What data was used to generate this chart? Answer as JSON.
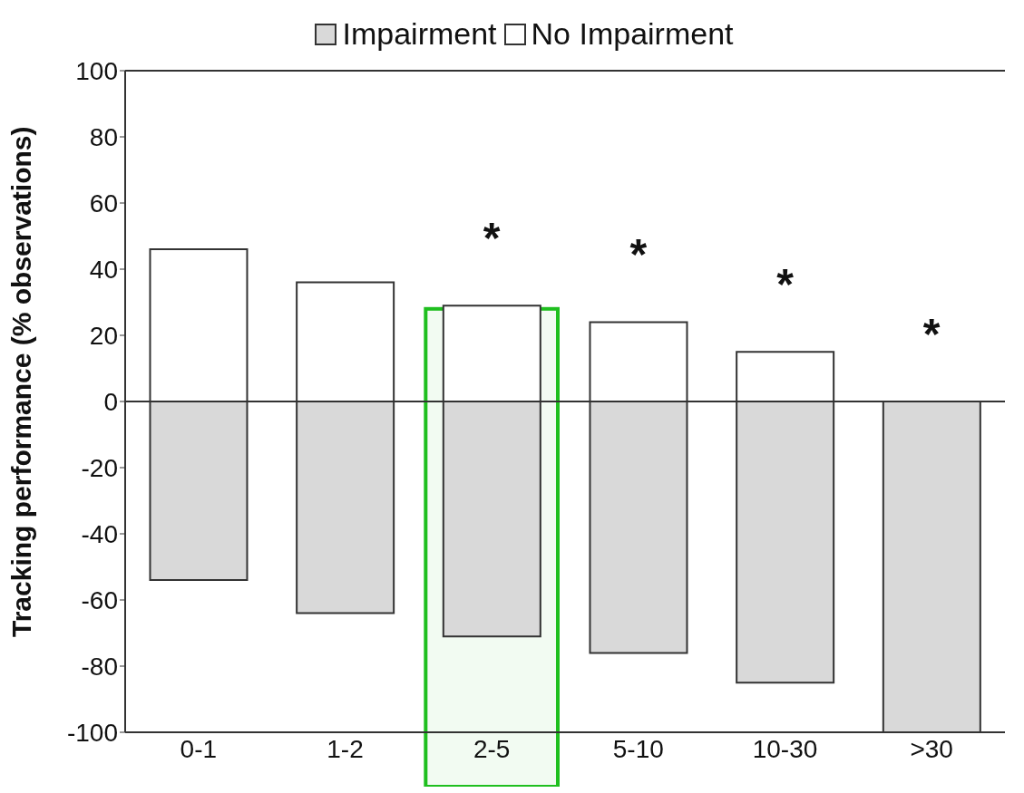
{
  "chart_data": {
    "type": "bar",
    "ylabel": "Tracking performance (% observations)",
    "categories": [
      "0-1",
      "1-2",
      "2-5",
      "5-10",
      "10-30",
      ">30"
    ],
    "series": [
      {
        "name": "Impairment",
        "color": "#d9d9d9",
        "values": [
          -54,
          -64,
          -71,
          -76,
          -85,
          -100
        ]
      },
      {
        "name": "No Impairment",
        "color": "#ffffff",
        "values": [
          46,
          36,
          29,
          24,
          15,
          0
        ]
      }
    ],
    "stacked": true,
    "ylim": [
      -100,
      100
    ],
    "yticks": [
      -100,
      -80,
      -60,
      -40,
      -20,
      0,
      20,
      40,
      60,
      80,
      100
    ],
    "legend": "top",
    "annotations": [
      "*",
      "*",
      "*",
      "*"
    ],
    "bands": [
      {
        "axis": "x",
        "from": "2-5",
        "to": "2-5",
        "color": "#1fbf1f"
      }
    ]
  }
}
